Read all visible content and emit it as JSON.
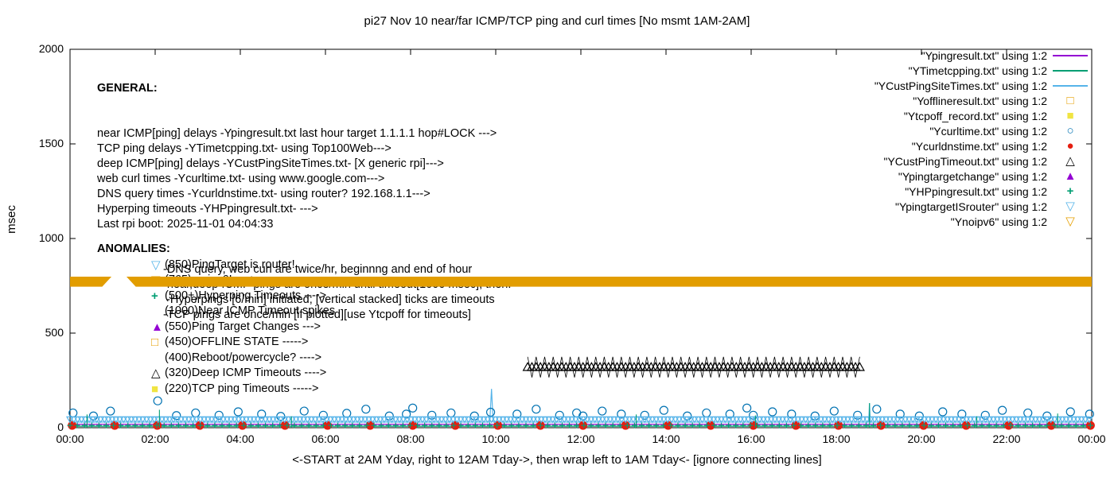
{
  "title": "pi27 Nov 10  near/far ICMP/TCP ping and curl times [No msmt 1AM-2AM]",
  "legend": {
    "items": [
      {
        "label": "\"Ypingresult.txt\" using 1:2",
        "swatch": "line",
        "color": "#9400d3"
      },
      {
        "label": "\"YTimetcpping.txt\" using 1:2",
        "swatch": "line",
        "color": "#009e73"
      },
      {
        "label": "\"YCustPingSiteTimes.txt\" using 1:2",
        "swatch": "line",
        "color": "#56b4e9"
      },
      {
        "label": "\"Yofflineresult.txt\" using 1:2",
        "swatch": "square-open",
        "color": "#e69f00"
      },
      {
        "label": "\"Ytcpoff_record.txt\" using 1:2",
        "swatch": "square-filled",
        "color": "#f0e442"
      },
      {
        "label": "\"Ycurltime.txt\" using 1:2",
        "swatch": "circle-open",
        "color": "#0072b2"
      },
      {
        "label": "\"Ycurldnstime.txt\" using 1:2",
        "swatch": "circle-filled",
        "color": "#e51e10"
      },
      {
        "label": "\"YCustPingTimeout.txt\" using 1:2",
        "swatch": "triangle-up-open",
        "color": "#000000"
      },
      {
        "label": "\"Ypingtargetchange\" using 1:2",
        "swatch": "triangle-up-filled",
        "color": "#9400d3"
      },
      {
        "label": "\"YHPpingresult.txt\" using 1:2",
        "swatch": "plus",
        "color": "#009e73"
      },
      {
        "label": "\"YpingtargetISrouter\" using 1:2",
        "swatch": "triangle-down-open",
        "color": "#56b4e9"
      },
      {
        "label": "\"Ynoipv6\" using 1:2",
        "swatch": "triangle-down-open",
        "color": "#e69f00"
      }
    ]
  },
  "annotations": {
    "general": {
      "heading": "GENERAL:",
      "lines": [
        "near ICMP[ping] delays -Ypingresult.txt last hour target 1.1.1.1 hop#LOCK --->",
        "TCP ping delays -YTimetcpping.txt- using Top100Web--->",
        "deep ICMP[ping] delays -YCustPingSiteTimes.txt- [X generic rpi]--->",
        "web curl times -Ycurltime.txt- using www.google.com--->",
        "DNS query times -Ycurldnstime.txt- using router? 192.168.1.1--->",
        "Hyperping timeouts -YHPpingresult.txt- --->",
        "Last rpi boot: 2025-11-01 04:04:33"
      ],
      "sub_lines": [
        "-DNS query, web curl are twice/hr, beginnng and end of hour",
        "-near,deep ICMP pings are once/min until timeout[1000 msec], then:",
        " -Hyperpings [6/min] initiated; [vertical stacked] ticks are timeouts",
        "-TCP pings are once/min [if plotted][use Ytcpoff for timeouts]"
      ]
    },
    "anomalies": {
      "heading": "ANOMALIES:",
      "items": [
        {
          "icon": "triangle-down-open",
          "color": "#56b4e9",
          "text": "(850)PingTarget is router!"
        },
        {
          "icon": "triangle-down-open",
          "color": "#e69f00",
          "text": "(765)no ipv6! ---->"
        },
        {
          "icon": "plus",
          "color": "#009e73",
          "text": "(500+)Hyperping Timeouts ---->"
        },
        {
          "icon": "none",
          "color": "",
          "text": "(1000)Near ICMP Timeout spikes"
        },
        {
          "icon": "triangle-up-filled",
          "color": "#9400d3",
          "text": "(550)Ping Target Changes --->"
        },
        {
          "icon": "square-open",
          "color": "#e69f00",
          "text": "(450)OFFLINE STATE ----->"
        },
        {
          "icon": "none",
          "color": "",
          "text": "(400)Reboot/powercycle? ---->"
        },
        {
          "icon": "triangle-up-open",
          "color": "#000000",
          "text": "(320)Deep ICMP Timeouts ---->"
        },
        {
          "icon": "square-filled",
          "color": "#f0e442",
          "text": "(220)TCP ping Timeouts ----->"
        }
      ]
    }
  },
  "chart_data": {
    "type": "line",
    "title": "pi27 Nov 10  near/far ICMP/TCP ping and curl times [No msmt 1AM-2AM]",
    "xlabel": "<-START at 2AM Yday, right to 12AM Tday->, then wrap left to 1AM Tday<- [ignore connecting lines]",
    "ylabel": "msec",
    "ylim": [
      0,
      2000
    ],
    "yticks": [
      0,
      500,
      1000,
      1500,
      2000
    ],
    "xticks": [
      "00:00",
      "02:00",
      "04:00",
      "06:00",
      "08:00",
      "10:00",
      "12:00",
      "14:00",
      "16:00",
      "18:00",
      "20:00",
      "22:00",
      "00:00"
    ],
    "grid": false,
    "legend_position": "top-right",
    "series": [
      {
        "name": "Ypingresult.txt",
        "style": "line",
        "color": "#9400d3",
        "points_hm": [
          [
            0,
            18
          ],
          [
            24,
            18
          ]
        ]
      },
      {
        "name": "YTimetcpping.txt",
        "style": "line",
        "color": "#009e73",
        "points_hm": [
          [
            0,
            8
          ],
          [
            24,
            8
          ]
        ]
      },
      {
        "name": "YCustPingSiteTimes.txt",
        "style": "line",
        "color": "#56b4e9",
        "points_hm": [
          [
            0,
            30
          ],
          [
            9.86,
            30
          ],
          [
            9.9,
            205
          ],
          [
            9.94,
            30
          ],
          [
            18.76,
            30
          ],
          [
            18.78,
            130
          ],
          [
            18.8,
            30
          ],
          [
            24,
            30
          ]
        ]
      },
      {
        "name": "Ycurltime.txt",
        "style": "points",
        "marker": "circle-open",
        "color": "#0072b2",
        "size": 5,
        "points_hm": [
          [
            0.07,
            78
          ],
          [
            0.55,
            62
          ],
          [
            0.95,
            88
          ],
          [
            2.06,
            142
          ],
          [
            2.5,
            64
          ],
          [
            2.95,
            78
          ],
          [
            3.5,
            66
          ],
          [
            3.95,
            84
          ],
          [
            4.5,
            72
          ],
          [
            4.95,
            60
          ],
          [
            5.5,
            88
          ],
          [
            5.95,
            66
          ],
          [
            6.5,
            76
          ],
          [
            6.95,
            98
          ],
          [
            7.5,
            62
          ],
          [
            7.9,
            72
          ],
          [
            8.05,
            104
          ],
          [
            8.5,
            66
          ],
          [
            8.95,
            78
          ],
          [
            9.5,
            62
          ],
          [
            9.88,
            82
          ],
          [
            10.5,
            72
          ],
          [
            10.95,
            98
          ],
          [
            11.5,
            66
          ],
          [
            11.9,
            78
          ],
          [
            12.05,
            62
          ],
          [
            12.5,
            88
          ],
          [
            12.95,
            72
          ],
          [
            13.5,
            66
          ],
          [
            13.95,
            92
          ],
          [
            14.5,
            62
          ],
          [
            14.95,
            78
          ],
          [
            15.5,
            72
          ],
          [
            15.9,
            104
          ],
          [
            16.05,
            66
          ],
          [
            16.5,
            84
          ],
          [
            16.95,
            72
          ],
          [
            17.5,
            62
          ],
          [
            17.95,
            88
          ],
          [
            18.5,
            66
          ],
          [
            18.95,
            98
          ],
          [
            19.5,
            72
          ],
          [
            19.95,
            62
          ],
          [
            20.5,
            84
          ],
          [
            20.95,
            72
          ],
          [
            21.5,
            66
          ],
          [
            21.9,
            92
          ],
          [
            22.5,
            78
          ],
          [
            22.95,
            62
          ],
          [
            23.5,
            84
          ],
          [
            23.95,
            72
          ]
        ]
      },
      {
        "name": "Ycurldnstime.txt",
        "style": "points",
        "marker": "circle-filled",
        "color": "#e51e10",
        "size": 5,
        "points_hm": [
          [
            0.05,
            12
          ],
          [
            1.05,
            12
          ],
          [
            2.05,
            12
          ],
          [
            3.05,
            12
          ],
          [
            4.05,
            12
          ],
          [
            5.05,
            12
          ],
          [
            6.05,
            12
          ],
          [
            7.05,
            12
          ],
          [
            8.05,
            12
          ],
          [
            9.05,
            12
          ],
          [
            10.05,
            12
          ],
          [
            11.05,
            12
          ],
          [
            12.05,
            12
          ],
          [
            13.05,
            12
          ],
          [
            14.05,
            12
          ],
          [
            15.05,
            12
          ],
          [
            16.05,
            12
          ],
          [
            17.05,
            12
          ],
          [
            18.05,
            12
          ],
          [
            19.05,
            12
          ],
          [
            20.05,
            12
          ],
          [
            21.05,
            12
          ],
          [
            22.05,
            12
          ],
          [
            23.05,
            12
          ],
          [
            23.97,
            12
          ]
        ]
      },
      {
        "name": "YCustPingTimeout.txt",
        "style": "points-row",
        "marker": "triangle-up-open",
        "color": "#000000",
        "size": 5.5,
        "y": 320,
        "x_from": 10.75,
        "x_to": 18.6,
        "step": 0.1,
        "connect": true
      },
      {
        "name": "YHPpingresult.txt",
        "style": "points-row",
        "marker": "plus",
        "color": "#009e73",
        "size": 3.5,
        "y": 12,
        "x_from": 0,
        "x_to": 24,
        "step": 0.17
      },
      {
        "name": "YpingtargetISrouter",
        "style": "points-row",
        "marker": "triangle-down-open",
        "color": "#56b4e9",
        "size": 4,
        "y": 45,
        "x_from": 0,
        "x_to": 24,
        "step": 0.09
      },
      {
        "name": "hyperping-spikes",
        "style": "vlines",
        "color": "#009e73",
        "spikes": [
          [
            0.4,
            70
          ],
          [
            2.1,
            95
          ],
          [
            5.2,
            60
          ],
          [
            13.3,
            70
          ],
          [
            16.1,
            65
          ],
          [
            18.78,
            130
          ],
          [
            21.3,
            60
          ],
          [
            23.2,
            75
          ]
        ]
      },
      {
        "name": "Ynoipv6",
        "style": "band",
        "color": "#e29d00",
        "y_from": 745,
        "y_to": 800,
        "segments_h": [
          [
            0,
            0.98
          ],
          [
            1.32,
            24
          ]
        ]
      }
    ]
  }
}
